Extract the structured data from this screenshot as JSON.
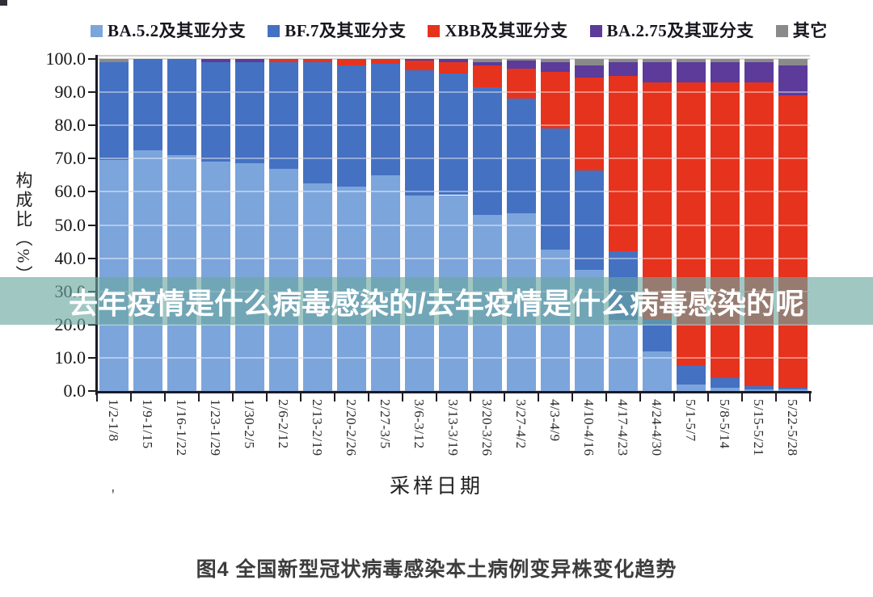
{
  "watermark": {
    "text": "去年疫情是什么病毒感染的/去年疫情是什么病毒感染的呢"
  },
  "caption": "图4 全国新型冠状病毒感染本土病例变异株变化趋势",
  "stray_mark": "'",
  "chart_data": {
    "type": "bar",
    "stacked": true,
    "legend_position": "top",
    "grid": true,
    "xlabel": "采样日期",
    "ylabel": "构成比（%）",
    "ylim": [
      0,
      100
    ],
    "ytick_labels": [
      "100.0",
      "90.0",
      "80.0",
      "70.0",
      "60.0",
      "50.0",
      "40.0",
      "30.0",
      "20.0",
      "10.0",
      "0.0"
    ],
    "categories": [
      "1/2-1/8",
      "1/9-1/15",
      "1/16-1/22",
      "1/23-1/29",
      "1/30-2/5",
      "2/6-2/12",
      "2/13-2/19",
      "2/20-2/26",
      "2/27-3/5",
      "3/6-3/12",
      "3/13-3/19",
      "3/20-3/26",
      "3/27-4/2",
      "4/3-4/9",
      "4/10-4/16",
      "4/17-4/23",
      "4/24-4/30",
      "5/1-5/7",
      "5/8-5/14",
      "5/15-5/21",
      "5/22-5/28"
    ],
    "series": [
      {
        "name": "BA.5.2及其亚分支",
        "color": "#7CA5DC",
        "values": [
          69.5,
          72.5,
          71,
          69,
          68.5,
          67,
          62.5,
          61.5,
          65,
          59,
          59,
          53,
          53.5,
          42.5,
          36.5,
          21.5,
          12,
          2,
          1,
          0.5,
          0.5
        ]
      },
      {
        "name": "BF.7及其亚分支",
        "color": "#4571C2",
        "values": [
          29.5,
          27.5,
          29,
          30,
          30.5,
          32,
          36.5,
          36.5,
          33.5,
          37.5,
          36.5,
          38.5,
          34.5,
          36.5,
          30,
          20.5,
          9.5,
          5.5,
          3,
          1,
          0.5
        ]
      },
      {
        "name": "XBB及其亚分支",
        "color": "#E6331E",
        "values": [
          0,
          0,
          0,
          0,
          0,
          1,
          1,
          2,
          1.5,
          3,
          3.5,
          6.5,
          9,
          17,
          28,
          53,
          71.5,
          85.5,
          89,
          91.5,
          88
        ]
      },
      {
        "name": "BA.2.75及其亚分支",
        "color": "#5C3B9B",
        "values": [
          0,
          0,
          0,
          1,
          1,
          0,
          0,
          0,
          0,
          0.5,
          1,
          1,
          2.5,
          3,
          3.5,
          4,
          6,
          6,
          6,
          6,
          9
        ]
      },
      {
        "name": "其它",
        "color": "#8A8A8A",
        "values": [
          1,
          0,
          0,
          0,
          0,
          0,
          0,
          0,
          0,
          0,
          0,
          1,
          0.5,
          1,
          2,
          1,
          1,
          1,
          1,
          1,
          2
        ]
      }
    ]
  }
}
